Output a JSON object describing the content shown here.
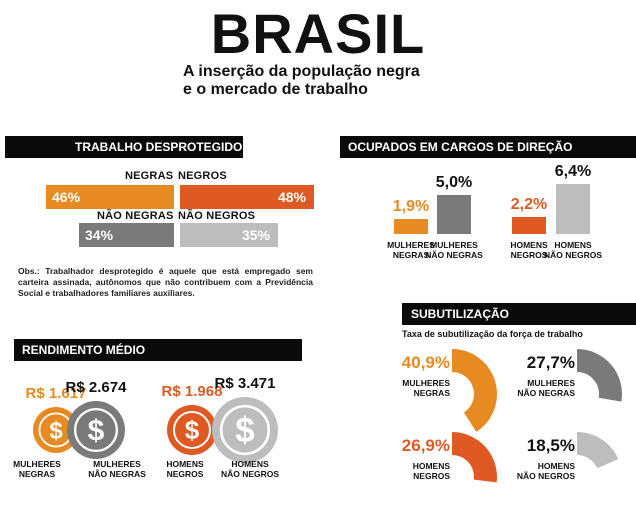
{
  "header": {
    "title": "BRASIL",
    "subtitle_line1": "A inserção da população negra",
    "subtitle_line2": "e o mercado de trabalho"
  },
  "trabalho": {
    "heading": "TRABALHO DESPROTEGIDO",
    "negras_label": "NEGRAS",
    "negros_label": "NEGROS",
    "nao_negras_label": "NÃO NEGRAS",
    "nao_negros_label": "NÃO NEGROS",
    "negras_value": "46%",
    "negros_value": "48%",
    "nao_negras_value": "34%",
    "nao_negros_value": "35%",
    "obs": "Obs.: Trabalhador desprotegido é aquele que está empregado sem carteira assinada, autônomos que não contribuem com a Previdência Social e trabalhadores familiares auxiliares."
  },
  "direcao": {
    "heading": "OCUPADOS EM CARGOS DE DIREÇÃO",
    "labels": [
      "MULHERES NEGRAS",
      "MULHERES NÃO NEGRAS",
      "HOMENS NEGROS",
      "HOMENS NÃO NEGROS"
    ],
    "values": [
      "1,9%",
      "5,0%",
      "2,2%",
      "6,4%"
    ]
  },
  "rendimento": {
    "heading": "RENDIMENTO MÉDIO",
    "labels": [
      "MULHERES NEGRAS",
      "MULHERES NÃO NEGRAS",
      "HOMENS NEGROS",
      "HOMENS NÃO NEGROS"
    ],
    "values": [
      "R$ 1.617",
      "R$ 2.674",
      "R$ 1.968",
      "R$ 3.471"
    ],
    "icon_symbol": "$"
  },
  "subutilizacao": {
    "heading": "SUBUTILIZAÇÃO",
    "caption": "Taxa de subutilização da força de trabalho",
    "labels": [
      "MULHERES NEGRAS",
      "MULHERES NÃO NEGRAS",
      "HOMENS NEGROS",
      "HOMENS NÃO NEGROS"
    ],
    "values": [
      "40,9%",
      "27,7%",
      "26,9%",
      "18,5%"
    ]
  },
  "colors": {
    "orange": "#e88a22",
    "red": "#df5a22",
    "dark_gray": "#7a7a7a",
    "light_gray": "#bdbdbd",
    "black": "#0a0a0a"
  },
  "chart_data": [
    {
      "type": "bar",
      "title": "TRABALHO DESPROTEGIDO",
      "categories": [
        "NEGRAS",
        "NEGROS",
        "NÃO NEGRAS",
        "NÃO NEGROS"
      ],
      "values": [
        46,
        48,
        34,
        35
      ],
      "unit": "%"
    },
    {
      "type": "bar",
      "title": "OCUPADOS EM CARGOS DE DIREÇÃO",
      "categories": [
        "MULHERES NEGRAS",
        "MULHERES NÃO NEGRAS",
        "HOMENS NEGROS",
        "HOMENS NÃO NEGROS"
      ],
      "values": [
        1.9,
        5.0,
        2.2,
        6.4
      ],
      "unit": "%"
    },
    {
      "type": "bar",
      "title": "RENDIMENTO MÉDIO",
      "categories": [
        "MULHERES NEGRAS",
        "MULHERES NÃO NEGRAS",
        "HOMENS NEGROS",
        "HOMENS NÃO NEGROS"
      ],
      "values": [
        1617,
        2674,
        1968,
        3471
      ],
      "unit": "R$"
    },
    {
      "type": "pie",
      "title": "SUBUTILIZAÇÃO",
      "subtitle": "Taxa de subutilização da força de trabalho",
      "categories": [
        "MULHERES NEGRAS",
        "MULHERES NÃO NEGRAS",
        "HOMENS NEGROS",
        "HOMENS NÃO NEGROS"
      ],
      "values": [
        40.9,
        27.7,
        26.9,
        18.5
      ],
      "unit": "%"
    }
  ]
}
